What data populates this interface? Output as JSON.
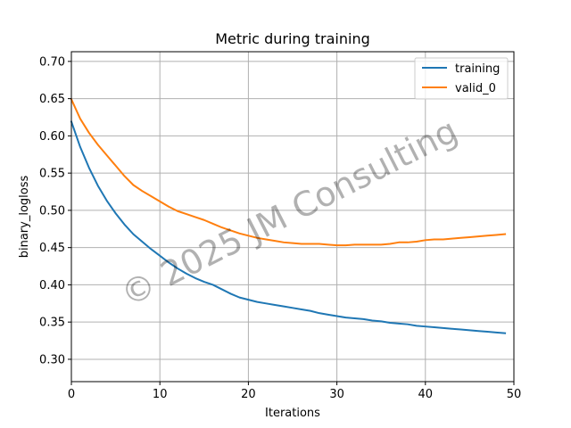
{
  "chart_data": {
    "type": "line",
    "title": "Metric during training",
    "xlabel": "Iterations",
    "ylabel": "binary_logloss",
    "xlim": [
      0,
      50
    ],
    "ylim": [
      0.27,
      0.713
    ],
    "xticks": [
      "0",
      "10",
      "20",
      "30",
      "40",
      "50"
    ],
    "yticks": [
      "0.30",
      "0.35",
      "0.40",
      "0.45",
      "0.50",
      "0.55",
      "0.60",
      "0.65",
      "0.70"
    ],
    "grid": true,
    "legend_position": "top-right",
    "watermark": "© 2025 JM Consulting",
    "x": [
      0,
      1,
      2,
      3,
      4,
      5,
      6,
      7,
      8,
      9,
      10,
      11,
      12,
      13,
      14,
      15,
      16,
      17,
      18,
      19,
      20,
      21,
      22,
      23,
      24,
      25,
      26,
      27,
      28,
      29,
      30,
      31,
      32,
      33,
      34,
      35,
      36,
      37,
      38,
      39,
      40,
      41,
      42,
      43,
      44,
      45,
      46,
      47,
      48,
      49
    ],
    "series": [
      {
        "name": "training",
        "color": "#1f77b4",
        "values": [
          0.619,
          0.585,
          0.557,
          0.533,
          0.513,
          0.496,
          0.481,
          0.468,
          0.458,
          0.448,
          0.439,
          0.43,
          0.422,
          0.415,
          0.409,
          0.404,
          0.4,
          0.394,
          0.388,
          0.383,
          0.38,
          0.377,
          0.375,
          0.373,
          0.371,
          0.369,
          0.367,
          0.365,
          0.362,
          0.36,
          0.358,
          0.356,
          0.355,
          0.354,
          0.352,
          0.351,
          0.349,
          0.348,
          0.347,
          0.345,
          0.344,
          0.343,
          0.342,
          0.341,
          0.34,
          0.339,
          0.338,
          0.337,
          0.336,
          0.335
        ]
      },
      {
        "name": "valid_0",
        "color": "#ff7f0e",
        "values": [
          0.649,
          0.623,
          0.604,
          0.588,
          0.574,
          0.56,
          0.546,
          0.534,
          0.526,
          0.519,
          0.512,
          0.505,
          0.499,
          0.495,
          0.491,
          0.487,
          0.482,
          0.477,
          0.473,
          0.469,
          0.466,
          0.463,
          0.461,
          0.459,
          0.457,
          0.456,
          0.455,
          0.455,
          0.455,
          0.454,
          0.453,
          0.453,
          0.454,
          0.454,
          0.454,
          0.454,
          0.455,
          0.457,
          0.457,
          0.458,
          0.46,
          0.461,
          0.461,
          0.462,
          0.463,
          0.464,
          0.465,
          0.466,
          0.467,
          0.468
        ]
      }
    ]
  }
}
